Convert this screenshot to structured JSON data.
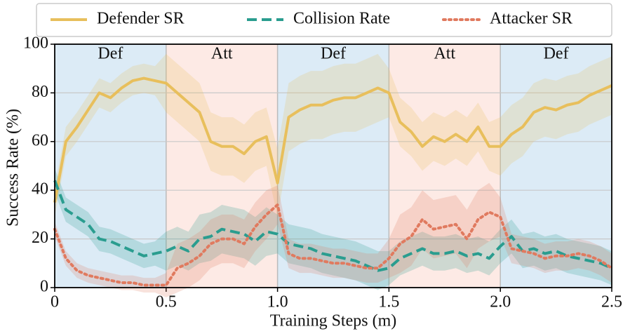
{
  "chart_data": {
    "type": "line",
    "xlabel": "Training Steps (m)",
    "ylabel": "Success Rate (%)",
    "xlim": [
      0,
      2.5
    ],
    "ylim": [
      0,
      100
    ],
    "xticks": [
      0,
      0.5,
      {
        "value": 1,
        "label": "1.0"
      },
      1.5,
      {
        "value": 2,
        "label": "2.0"
      },
      2.5
    ],
    "yticks": [
      0,
      20,
      40,
      60,
      80,
      100
    ],
    "grid": true,
    "legend": "top",
    "regions": [
      {
        "label": "Def",
        "start": 0,
        "end": 0.5,
        "color": "#dcebf6"
      },
      {
        "label": "Att",
        "start": 0.5,
        "end": 1,
        "color": "#fdeae5"
      },
      {
        "label": "Def",
        "start": 1,
        "end": 1.5,
        "color": "#dcebf6"
      },
      {
        "label": "Att",
        "start": 1.5,
        "end": 2,
        "color": "#fdeae5"
      },
      {
        "label": "Def",
        "start": 2,
        "end": 2.5,
        "color": "#dcebf6"
      }
    ],
    "x": [
      0,
      0.05,
      0.1,
      0.15,
      0.2,
      0.25,
      0.3,
      0.35,
      0.4,
      0.45,
      0.5,
      0.55,
      0.6,
      0.65,
      0.7,
      0.75,
      0.8,
      0.85,
      0.9,
      0.95,
      1,
      1.05,
      1.1,
      1.15,
      1.2,
      1.25,
      1.3,
      1.35,
      1.4,
      1.45,
      1.5,
      1.55,
      1.6,
      1.65,
      1.7,
      1.75,
      1.8,
      1.85,
      1.9,
      1.95,
      2,
      2.05,
      2.1,
      2.15,
      2.2,
      2.25,
      2.3,
      2.35,
      2.4,
      2.45,
      2.5
    ],
    "series": [
      {
        "name": "Defender SR",
        "color": "#e8bf5c",
        "style": "solid",
        "values": [
          35,
          60,
          66,
          73,
          80,
          78,
          82,
          85,
          86,
          85,
          84,
          80,
          76,
          72,
          60,
          58,
          58,
          55,
          60,
          62,
          43,
          70,
          73,
          75,
          75,
          77,
          78,
          78,
          80,
          82,
          80,
          68,
          64,
          58,
          62,
          60,
          63,
          60,
          66,
          58,
          58,
          63,
          66,
          72,
          74,
          73,
          75,
          76,
          79,
          81,
          83
        ],
        "error": [
          6,
          6,
          6,
          6,
          6,
          6,
          6,
          6,
          6,
          6,
          12,
          12,
          12,
          12,
          12,
          12,
          12,
          12,
          12,
          12,
          14,
          14,
          14,
          14,
          14,
          14,
          14,
          14,
          14,
          14,
          10,
          10,
          10,
          10,
          10,
          10,
          10,
          10,
          10,
          10,
          12,
          12,
          12,
          12,
          12,
          12,
          12,
          12,
          12,
          12,
          12
        ]
      },
      {
        "name": "Collision Rate",
        "color": "#2a9d8f",
        "style": "dashed",
        "values": [
          44,
          32,
          29,
          26,
          20,
          19,
          17,
          15,
          13,
          14,
          15,
          17,
          15,
          20,
          21,
          24,
          23,
          22,
          19,
          23,
          22,
          18,
          17,
          16,
          14,
          13,
          12,
          11,
          9,
          7,
          8,
          12,
          14,
          16,
          14,
          14,
          15,
          13,
          14,
          12,
          17,
          21,
          15,
          16,
          14,
          15,
          13,
          12,
          11,
          10,
          8
        ],
        "error": [
          5,
          5,
          5,
          5,
          5,
          5,
          5,
          5,
          5,
          5,
          8,
          8,
          8,
          10,
          10,
          10,
          10,
          10,
          10,
          10,
          8,
          8,
          8,
          8,
          8,
          8,
          8,
          8,
          8,
          8,
          7,
          7,
          7,
          7,
          7,
          7,
          7,
          7,
          7,
          7,
          7,
          7,
          7,
          7,
          7,
          7,
          7,
          7,
          7,
          7,
          7
        ]
      },
      {
        "name": "Attacker SR",
        "color": "#e07a5f",
        "style": "dotted",
        "values": [
          24,
          12,
          7,
          5,
          4,
          3,
          2,
          2,
          1,
          1,
          1,
          8,
          10,
          13,
          18,
          20,
          20,
          18,
          25,
          30,
          34,
          14,
          12,
          12,
          11,
          10,
          10,
          9,
          8,
          8,
          12,
          18,
          21,
          28,
          24,
          25,
          26,
          20,
          28,
          31,
          29,
          16,
          15,
          14,
          12,
          13,
          13,
          14,
          13,
          11,
          8
        ],
        "error": [
          3,
          3,
          3,
          3,
          3,
          3,
          3,
          3,
          3,
          3,
          5,
          10,
          10,
          10,
          10,
          10,
          10,
          10,
          10,
          10,
          8,
          6,
          6,
          6,
          6,
          6,
          6,
          6,
          6,
          6,
          8,
          12,
          12,
          12,
          12,
          12,
          12,
          12,
          12,
          12,
          8,
          6,
          6,
          6,
          6,
          6,
          6,
          6,
          6,
          6,
          6
        ]
      }
    ]
  }
}
